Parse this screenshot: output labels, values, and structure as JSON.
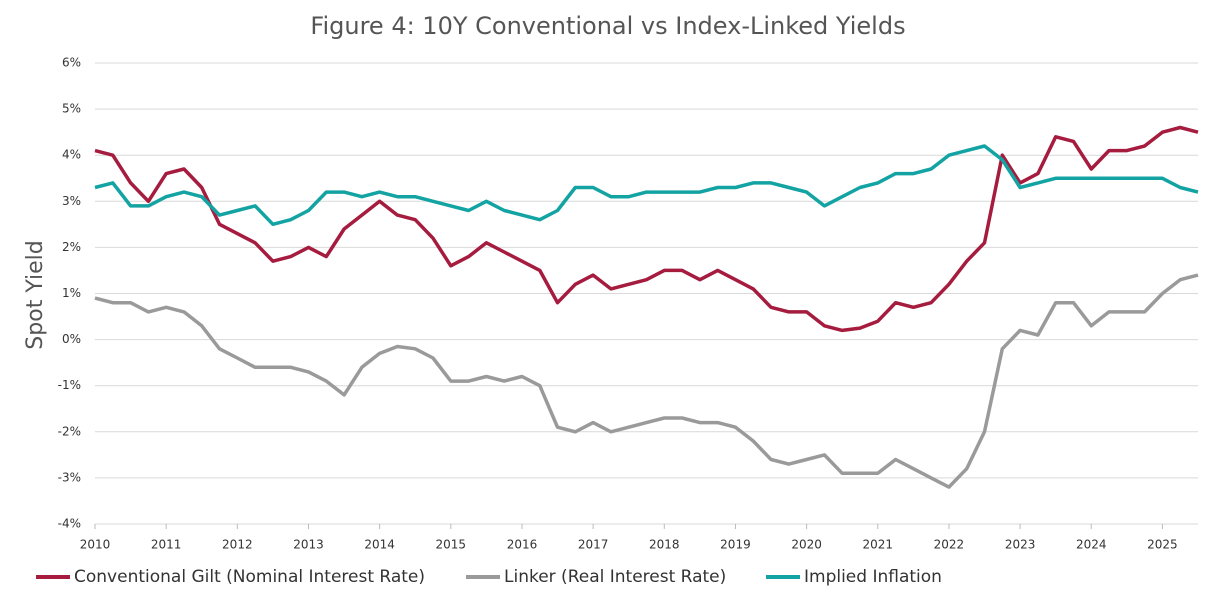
{
  "chart_data": {
    "type": "line",
    "title": "Figure 4: 10Y Conventional vs Index-Linked Yields",
    "y_label": "Spot Yield",
    "x": [
      2010,
      2010.25,
      2010.5,
      2010.75,
      2011,
      2011.25,
      2011.5,
      2011.75,
      2012,
      2012.25,
      2012.5,
      2012.75,
      2013,
      2013.25,
      2013.5,
      2013.75,
      2014,
      2014.25,
      2014.5,
      2014.75,
      2015,
      2015.25,
      2015.5,
      2015.75,
      2016,
      2016.25,
      2016.5,
      2016.75,
      2017,
      2017.25,
      2017.5,
      2017.75,
      2018,
      2018.25,
      2018.5,
      2018.75,
      2019,
      2019.25,
      2019.5,
      2019.75,
      2020,
      2020.25,
      2020.5,
      2020.75,
      2021,
      2021.25,
      2021.5,
      2021.75,
      2022,
      2022.25,
      2022.5,
      2022.75,
      2023,
      2023.25,
      2023.5,
      2023.75,
      2024,
      2024.25,
      2024.5,
      2024.75,
      2025,
      2025.25,
      2025.5
    ],
    "series": [
      {
        "name": "Conventional Gilt (Nominal Interest Rate)",
        "color": "#a51c3f",
        "values": [
          4.1,
          4.0,
          3.4,
          3.0,
          3.6,
          3.7,
          3.3,
          2.5,
          2.3,
          2.1,
          1.7,
          1.8,
          2.0,
          1.8,
          2.4,
          2.7,
          3.0,
          2.7,
          2.6,
          2.2,
          1.6,
          1.8,
          2.1,
          1.9,
          1.7,
          1.5,
          0.8,
          1.2,
          1.4,
          1.1,
          1.2,
          1.3,
          1.5,
          1.5,
          1.3,
          1.5,
          1.3,
          1.1,
          0.7,
          0.6,
          0.6,
          0.3,
          0.2,
          0.25,
          0.4,
          0.8,
          0.7,
          0.8,
          1.2,
          1.7,
          2.1,
          4.0,
          3.4,
          3.6,
          4.4,
          4.3,
          3.7,
          4.1,
          4.1,
          4.2,
          4.5,
          4.6,
          4.5
        ]
      },
      {
        "name": "Linker (Real Interest Rate)",
        "color": "#9a9a9a",
        "values": [
          0.9,
          0.8,
          0.8,
          0.6,
          0.7,
          0.6,
          0.3,
          -0.2,
          -0.4,
          -0.6,
          -0.6,
          -0.6,
          -0.7,
          -0.9,
          -1.2,
          -0.6,
          -0.3,
          -0.15,
          -0.2,
          -0.4,
          -0.9,
          -0.9,
          -0.8,
          -0.9,
          -0.8,
          -1.0,
          -1.9,
          -2.0,
          -1.8,
          -2.0,
          -1.9,
          -1.8,
          -1.7,
          -1.7,
          -1.8,
          -1.8,
          -1.9,
          -2.2,
          -2.6,
          -2.7,
          -2.6,
          -2.5,
          -2.9,
          -2.9,
          -2.9,
          -2.6,
          -2.8,
          -3.0,
          -3.2,
          -2.8,
          -2.0,
          -0.2,
          0.2,
          0.1,
          0.8,
          0.8,
          0.3,
          0.6,
          0.6,
          0.6,
          1.0,
          1.3,
          1.4
        ]
      },
      {
        "name": "Implied Inflation",
        "color": "#14a3a3",
        "values": [
          3.3,
          3.4,
          2.9,
          2.9,
          3.1,
          3.2,
          3.1,
          2.7,
          2.8,
          2.9,
          2.5,
          2.6,
          2.8,
          3.2,
          3.2,
          3.1,
          3.2,
          3.1,
          3.1,
          3.0,
          2.9,
          2.8,
          3.0,
          2.8,
          2.7,
          2.6,
          2.8,
          3.3,
          3.3,
          3.1,
          3.1,
          3.2,
          3.2,
          3.2,
          3.2,
          3.3,
          3.3,
          3.4,
          3.4,
          3.3,
          3.2,
          2.9,
          3.1,
          3.3,
          3.4,
          3.6,
          3.6,
          3.7,
          4.0,
          4.1,
          4.2,
          3.9,
          3.3,
          3.4,
          3.5,
          3.5,
          3.5,
          3.5,
          3.5,
          3.5,
          3.5,
          3.3,
          3.2
        ]
      }
    ],
    "xlim": [
      2010,
      2025.5
    ],
    "xticks": [
      2010,
      2011,
      2012,
      2013,
      2014,
      2015,
      2016,
      2017,
      2018,
      2019,
      2020,
      2021,
      2022,
      2023,
      2024,
      2025
    ],
    "ylim": [
      -4,
      6
    ],
    "yticks": [
      {
        "value": -4,
        "label": "-4%"
      },
      {
        "value": -3,
        "label": "-3%"
      },
      {
        "value": -2,
        "label": "-2%"
      },
      {
        "value": -1,
        "label": "-1%"
      },
      {
        "value": 0,
        "label": "0%"
      },
      {
        "value": 1,
        "label": "1%"
      },
      {
        "value": 2,
        "label": "2%"
      },
      {
        "value": 3,
        "label": "3%"
      },
      {
        "value": 4,
        "label": "4%"
      },
      {
        "value": 5,
        "label": "5%"
      },
      {
        "value": 6,
        "label": "6%"
      }
    ],
    "grid": true,
    "legend": "bottom"
  }
}
